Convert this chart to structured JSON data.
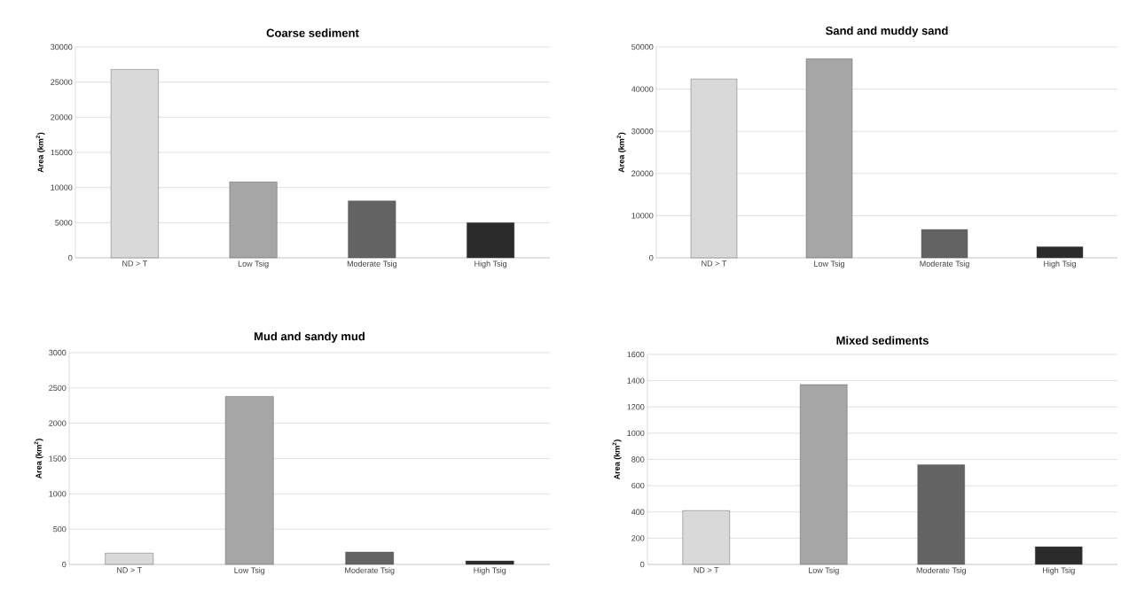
{
  "chart_data": [
    {
      "type": "bar",
      "title": "Coarse sediment",
      "ylabel": "Area (km$^{2}$)",
      "categories": [
        "ND > T",
        "Low Tsig",
        "Moderate Tsig",
        "High Tsig"
      ],
      "values": [
        26800,
        10800,
        8100,
        5000
      ],
      "colors": [
        "#d9d9d9",
        "#a6a6a6",
        "#636363",
        "#2b2b2b"
      ],
      "ylim": [
        0,
        30000
      ],
      "yticks": [
        0,
        5000,
        10000,
        15000,
        20000,
        25000,
        30000
      ],
      "grid": "y"
    },
    {
      "type": "bar",
      "title": "Sand and muddy sand",
      "ylabel": "Area (km$^{2}$)",
      "categories": [
        "ND > T",
        "Low Tsig",
        "Moderate Tsig",
        "High Tsig"
      ],
      "values": [
        42400,
        47200,
        6700,
        2600
      ],
      "colors": [
        "#d9d9d9",
        "#a6a6a6",
        "#636363",
        "#2b2b2b"
      ],
      "ylim": [
        0,
        50000
      ],
      "yticks": [
        0,
        10000,
        20000,
        30000,
        40000,
        50000
      ],
      "grid": "y"
    },
    {
      "type": "bar",
      "title": "Mud and sandy mud",
      "ylabel": "Area (km$^{2}$)",
      "categories": [
        "ND > T",
        "Low Tsig",
        "Moderate Tsig",
        "High Tsig"
      ],
      "values": [
        160,
        2380,
        175,
        50
      ],
      "colors": [
        "#d9d9d9",
        "#a6a6a6",
        "#636363",
        "#2b2b2b"
      ],
      "ylim": [
        0,
        3000
      ],
      "yticks": [
        0,
        500,
        1000,
        1500,
        2000,
        2500,
        3000
      ],
      "grid": "y"
    },
    {
      "type": "bar",
      "title": "Mixed sediments",
      "ylabel": "Area (km$^{2}$)",
      "categories": [
        "ND > T",
        "Low Tsig",
        "Moderate Tsig",
        "High Tsig"
      ],
      "values": [
        410,
        1370,
        760,
        135
      ],
      "colors": [
        "#d9d9d9",
        "#a6a6a6",
        "#636363",
        "#2b2b2b"
      ],
      "ylim": [
        0,
        1600
      ],
      "yticks": [
        0,
        200,
        400,
        600,
        800,
        1000,
        1200,
        1400,
        1600
      ],
      "grid": "y"
    }
  ]
}
